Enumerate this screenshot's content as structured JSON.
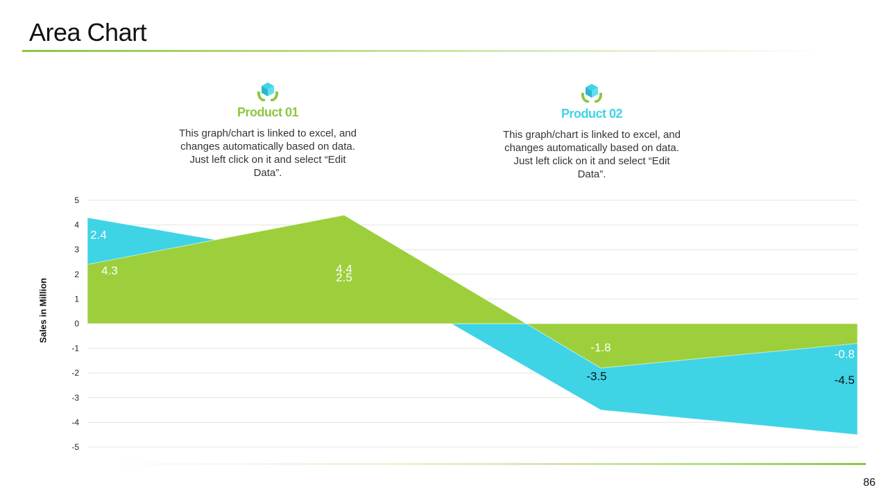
{
  "page": {
    "title": "Area Chart",
    "page_number": "86"
  },
  "products": [
    {
      "name": "Product 01",
      "icon": "hands-box-icon",
      "color": "#8cc63f",
      "description": "This graph/chart is linked to excel, and changes automatically based on data. Just left click on it and select “Edit Data”."
    },
    {
      "name": "Product 02",
      "icon": "hands-box-icon",
      "color": "#3fd3e6",
      "description": "This graph/chart is linked to excel, and changes automatically based on data. Just left click on it and select “Edit Data”."
    }
  ],
  "chart_data": {
    "type": "area",
    "title": "",
    "xlabel": "",
    "ylabel": "Sales in Million",
    "ylim": [
      -5,
      5
    ],
    "yticks": [
      5,
      4,
      3,
      2,
      1,
      0,
      -1,
      -2,
      -3,
      -4,
      -5
    ],
    "categories": [
      "",
      "",
      "",
      ""
    ],
    "grid": true,
    "legend": "none",
    "series": [
      {
        "values": [
          4.3,
          2.5,
          -3.5,
          -4.5
        ],
        "color": "#3fd3e6"
      },
      {
        "values": [
          2.4,
          4.4,
          -1.8,
          -0.8
        ],
        "color": "#9ccf3b"
      }
    ],
    "data_labels": [
      {
        "text": "4.3",
        "series": 0,
        "index": 0
      },
      {
        "text": "2.4",
        "series": 1,
        "index": 0
      },
      {
        "text": "4.4",
        "series": 1,
        "index": 1
      },
      {
        "text": "2.5",
        "series": 0,
        "index": 1
      },
      {
        "text": "-1.8",
        "series": 1,
        "index": 2
      },
      {
        "text": "-3.5",
        "series": 0,
        "index": 2
      },
      {
        "text": "-0.8",
        "series": 1,
        "index": 3
      },
      {
        "text": "-4.5",
        "series": 0,
        "index": 3
      }
    ]
  }
}
